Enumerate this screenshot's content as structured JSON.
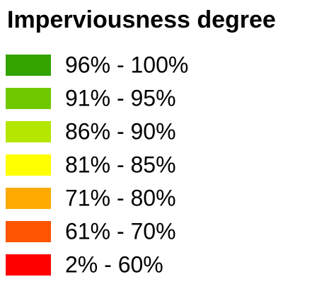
{
  "legend": {
    "title": "Imperviousness degree",
    "items": [
      {
        "label": "96% - 100%",
        "color": "#33a300"
      },
      {
        "label": "91% - 95%",
        "color": "#70c800"
      },
      {
        "label": "86% - 90%",
        "color": "#b4e600"
      },
      {
        "label": "81% - 85%",
        "color": "#ffff00"
      },
      {
        "label": "71% - 80%",
        "color": "#ffaa00"
      },
      {
        "label": "61% - 70%",
        "color": "#ff5500"
      },
      {
        "label": "2% - 60%",
        "color": "#ff0000"
      }
    ]
  }
}
